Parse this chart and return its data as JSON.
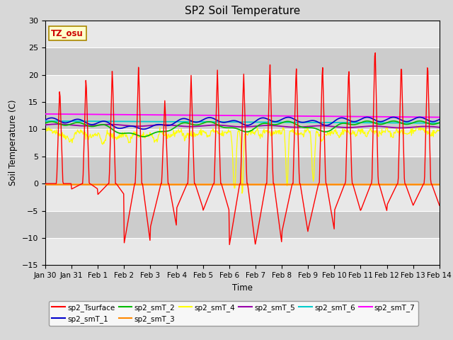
{
  "title": "SP2 Soil Temperature",
  "ylabel": "Soil Temperature (C)",
  "xlabel": "Time",
  "ylim": [
    -15,
    30
  ],
  "yticks": [
    -15,
    -10,
    -5,
    0,
    5,
    10,
    15,
    20,
    25,
    30
  ],
  "xtick_labels": [
    "Jan 30",
    "Jan 31",
    "Feb 1",
    "Feb 2",
    "Feb 3",
    "Feb 4",
    "Feb 5",
    "Feb 6",
    "Feb 7",
    "Feb 8",
    "Feb 9",
    "Feb 10",
    "Feb 11",
    "Feb 12",
    "Feb 13",
    "Feb 14"
  ],
  "days": 15,
  "bg_color": "#d8d8d8",
  "plot_bg_light": "#e8e8e8",
  "plot_bg_dark": "#cccccc",
  "tz_label": "TZ_osu",
  "tz_box_color": "#ffffcc",
  "tz_text_color": "#cc0000",
  "series_colors": {
    "sp2_Tsurface": "#ff0000",
    "sp2_smT_1": "#0000cc",
    "sp2_smT_2": "#00bb00",
    "sp2_smT_3": "#ff8800",
    "sp2_smT_4": "#ffff00",
    "sp2_smT_5": "#9900aa",
    "sp2_smT_6": "#00cccc",
    "sp2_smT_7": "#ff00ff"
  }
}
